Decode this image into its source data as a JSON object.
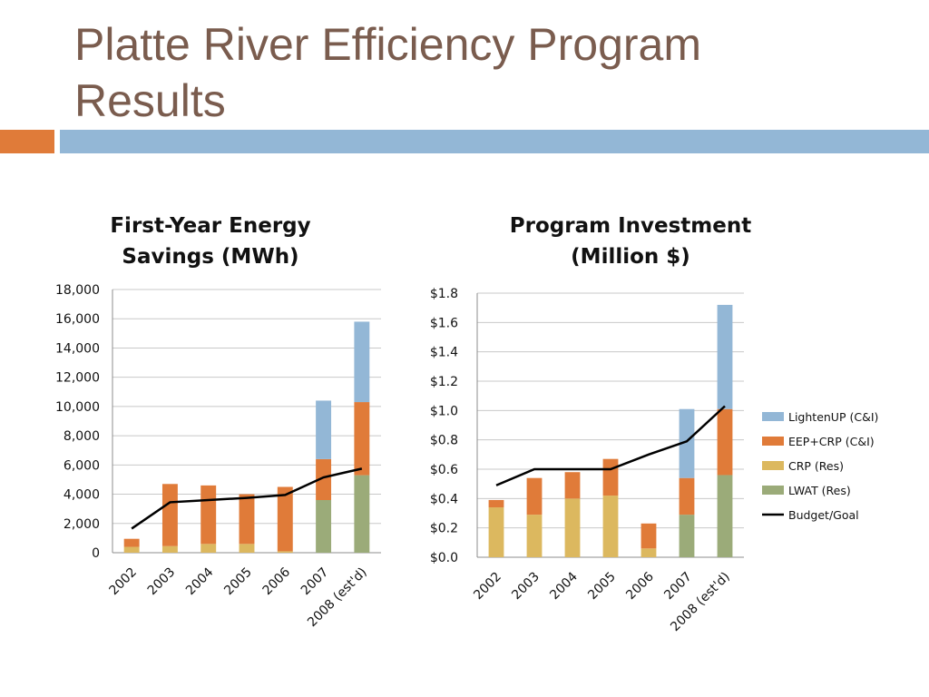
{
  "slide": {
    "title_line1": "Platte River Efficiency Program",
    "title_line2": "Results",
    "accent_orange": "#e07b39",
    "accent_blue": "#93b7d6",
    "title_color": "#7a5c4e"
  },
  "colors": {
    "LWAT (Res)": "#9bab79",
    "CRP (Res)": "#dcb85f",
    "EEP+CRP (C&I)": "#e07b39",
    "LightenUP (C&I)": "#93b7d6",
    "Budget/Goal": "#000000"
  },
  "chart_data": [
    {
      "type": "bar",
      "stacked": true,
      "title_line1": "First-Year Energy",
      "title_line2": "Savings (MWh)",
      "categories": [
        "2002",
        "2003",
        "2004",
        "2005",
        "2006",
        "2007",
        "2008 (est'd)"
      ],
      "ylim": [
        0,
        18000
      ],
      "yticks": [
        0,
        2000,
        4000,
        6000,
        8000,
        10000,
        12000,
        14000,
        16000,
        18000
      ],
      "ytick_labels": [
        "0",
        "2,000",
        "4,000",
        "6,000",
        "8,000",
        "10,000",
        "12,000",
        "14,000",
        "16,000",
        "18,000"
      ],
      "grid": true,
      "series": [
        {
          "name": "LWAT (Res)",
          "values": [
            0,
            0,
            0,
            0,
            0,
            3600,
            5300
          ]
        },
        {
          "name": "CRP (Res)",
          "values": [
            400,
            450,
            600,
            600,
            100,
            0,
            0
          ]
        },
        {
          "name": "EEP+CRP (C&I)",
          "values": [
            550,
            4250,
            4000,
            3400,
            4400,
            2800,
            5000
          ]
        },
        {
          "name": "LightenUP (C&I)",
          "values": [
            0,
            0,
            0,
            0,
            0,
            4000,
            5500
          ]
        }
      ],
      "line": {
        "name": "Budget/Goal",
        "values": [
          1650,
          3450,
          3600,
          3750,
          3950,
          5150,
          5750
        ]
      }
    },
    {
      "type": "bar",
      "stacked": true,
      "title_line1": "Program Investment",
      "title_line2": "(Million $)",
      "categories": [
        "2002",
        "2003",
        "2004",
        "2005",
        "2006",
        "2007",
        "2008 (est'd)"
      ],
      "ylim": [
        0,
        1.8
      ],
      "yticks": [
        0,
        0.2,
        0.4,
        0.6,
        0.8,
        1.0,
        1.2,
        1.4,
        1.6,
        1.8
      ],
      "ytick_labels": [
        "$0.0",
        "$0.2",
        "$0.4",
        "$0.6",
        "$0.8",
        "$1.0",
        "$1.2",
        "$1.4",
        "$1.6",
        "$1.8"
      ],
      "grid": true,
      "legend_position": "right",
      "series": [
        {
          "name": "LWAT (Res)",
          "values": [
            0,
            0,
            0,
            0,
            0,
            0.29,
            0.56
          ]
        },
        {
          "name": "CRP (Res)",
          "values": [
            0.34,
            0.29,
            0.4,
            0.42,
            0.06,
            0,
            0
          ]
        },
        {
          "name": "EEP+CRP (C&I)",
          "values": [
            0.05,
            0.25,
            0.18,
            0.25,
            0.17,
            0.25,
            0.45
          ]
        },
        {
          "name": "LightenUP (C&I)",
          "values": [
            0,
            0,
            0,
            0,
            0,
            0.47,
            0.71
          ]
        }
      ],
      "line": {
        "name": "Budget/Goal",
        "values": [
          0.49,
          0.6,
          0.6,
          0.6,
          0.7,
          0.79,
          1.03
        ]
      },
      "legend": [
        "LightenUP (C&I)",
        "EEP+CRP (C&I)",
        "CRP (Res)",
        "LWAT (Res)",
        "Budget/Goal"
      ]
    }
  ]
}
